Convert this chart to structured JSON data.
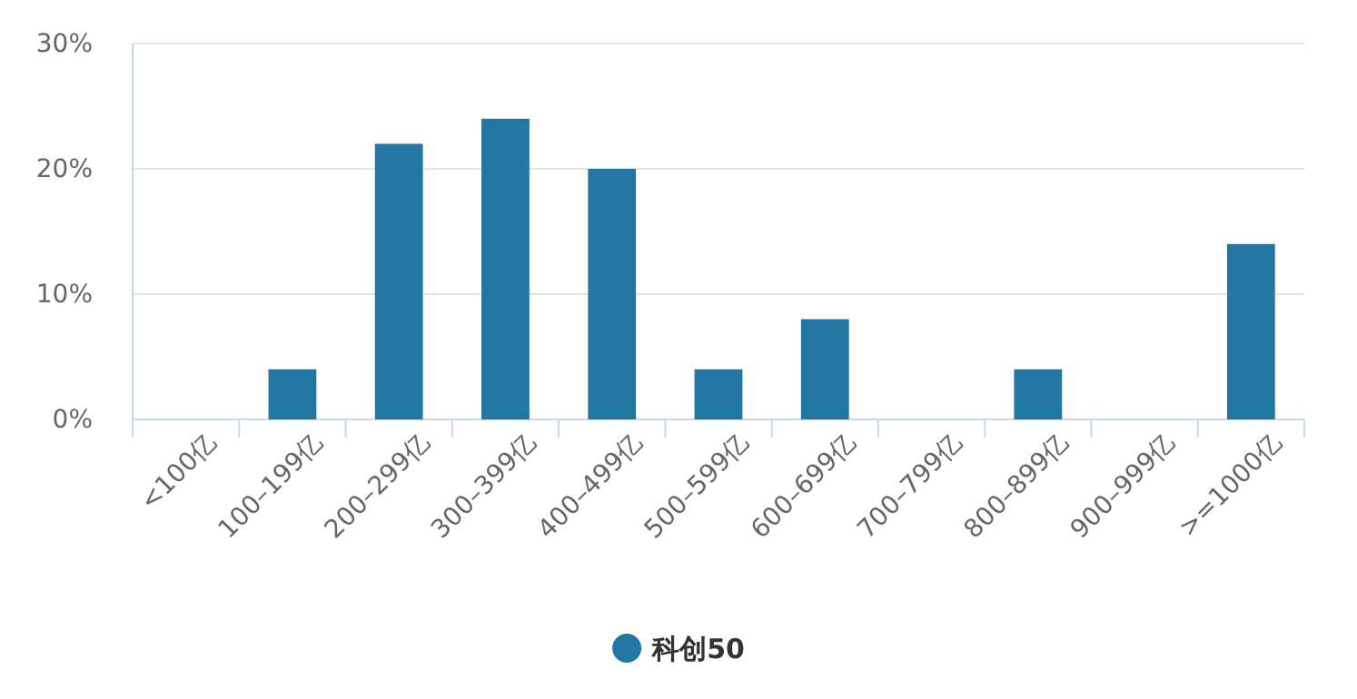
{
  "chart_data": {
    "type": "bar",
    "categories": [
      "<100亿",
      "100–199亿",
      "200–299亿",
      "300–399亿",
      "400–499亿",
      "500–599亿",
      "600–699亿",
      "700–799亿",
      "800–899亿",
      "900–999亿",
      ">=1000亿"
    ],
    "series": [
      {
        "name": "科创50",
        "color": "#2277a2",
        "values": [
          0,
          4,
          22,
          24,
          20,
          4,
          8,
          0,
          4,
          0,
          14
        ]
      }
    ],
    "ylim": [
      0,
      30
    ],
    "yticks": [
      {
        "value": 0,
        "label": "0%"
      },
      {
        "value": 10,
        "label": "10%"
      },
      {
        "value": 20,
        "label": "20%"
      },
      {
        "value": 30,
        "label": "30%"
      }
    ],
    "grid": "y",
    "legend": "bottom"
  }
}
